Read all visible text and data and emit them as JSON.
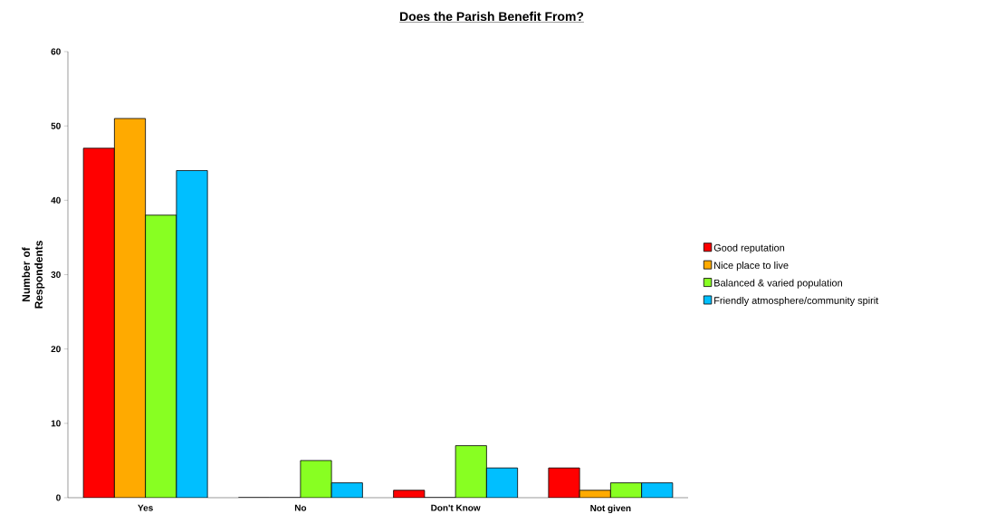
{
  "chart_data": {
    "type": "bar",
    "title": "Does the Parish Benefit From?",
    "ylabel": "Number of Respondents",
    "categories": [
      "Yes",
      "No",
      "Don't Know",
      "Not given"
    ],
    "series": [
      {
        "name": "Good reputation",
        "color": "#ff0000",
        "values": [
          47,
          0,
          1,
          4
        ]
      },
      {
        "name": "Nice place to live",
        "color": "#ffaa00",
        "values": [
          51,
          0,
          0,
          1
        ]
      },
      {
        "name": "Balanced & varied population",
        "color": "#88ff22",
        "values": [
          38,
          5,
          7,
          2
        ]
      },
      {
        "name": "Friendly atmosphere/community spirit",
        "color": "#00bfff",
        "values": [
          44,
          2,
          4,
          2
        ]
      }
    ],
    "ylim": [
      0,
      60
    ],
    "yticks": [
      0,
      10,
      20,
      30,
      40,
      50,
      60
    ],
    "legend": "right"
  }
}
